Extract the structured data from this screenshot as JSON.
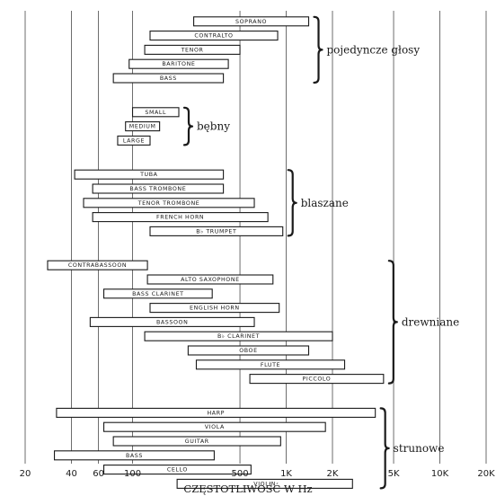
{
  "chart_data": {
    "type": "bar",
    "orientation": "horizontal-range",
    "title": "",
    "xlabel": "CZĘSTOTLIWOŚĆ W Hz",
    "ylabel": "",
    "xscale": "log",
    "xlim": [
      20,
      20000
    ],
    "xticks": [
      {
        "value": 20,
        "label": "20"
      },
      {
        "value": 40,
        "label": "40"
      },
      {
        "value": 60,
        "label": "60"
      },
      {
        "value": 100,
        "label": "100"
      },
      {
        "value": 500,
        "label": "500"
      },
      {
        "value": 1000,
        "label": "1K"
      },
      {
        "value": 2000,
        "label": "2K"
      },
      {
        "value": 5000,
        "label": "5K"
      },
      {
        "value": 10000,
        "label": "10K"
      },
      {
        "value": 20000,
        "label": "20K"
      }
    ],
    "grid": true,
    "groups": [
      {
        "name": "pojedyncze głosy",
        "instruments": [
          {
            "label": "SOPRANO",
            "low": 250,
            "high": 1400
          },
          {
            "label": "CONTRALTO",
            "low": 130,
            "high": 880
          },
          {
            "label": "TENOR",
            "low": 120,
            "high": 500
          },
          {
            "label": "BARITONE",
            "low": 95,
            "high": 420
          },
          {
            "label": "BASS",
            "low": 75,
            "high": 390
          }
        ]
      },
      {
        "name": "bębny",
        "instruments": [
          {
            "label": "SMALL",
            "low": 100,
            "high": 200
          },
          {
            "label": "MEDIUM",
            "low": 90,
            "high": 150
          },
          {
            "label": "LARGE",
            "low": 80,
            "high": 130
          }
        ]
      },
      {
        "name": "blaszane",
        "instruments": [
          {
            "label": "TUBA",
            "low": 42,
            "high": 390
          },
          {
            "label": "BASS TROMBONE",
            "low": 55,
            "high": 390
          },
          {
            "label": "TENOR TROMBONE",
            "low": 48,
            "high": 620
          },
          {
            "label": "FRENCH HORN",
            "low": 55,
            "high": 760
          },
          {
            "label": "B♭ TRUMPET",
            "low": 130,
            "high": 950
          }
        ]
      },
      {
        "name": "drewniane",
        "instruments": [
          {
            "label": "CONTRABASSOON",
            "low": 28,
            "high": 125
          },
          {
            "label": "ALTO SAXOPHONE",
            "low": 125,
            "high": 820
          },
          {
            "label": "BASS CLARINET",
            "low": 65,
            "high": 330
          },
          {
            "label": "ENGLISH HORN",
            "low": 130,
            "high": 900
          },
          {
            "label": "BASSOON",
            "low": 53,
            "high": 620
          },
          {
            "label": "B♭ CLARINET",
            "low": 120,
            "high": 2000
          },
          {
            "label": "OBOE",
            "low": 230,
            "high": 1400
          },
          {
            "label": "FLUTE",
            "low": 260,
            "high": 2400
          },
          {
            "label": "PICCOLO",
            "low": 580,
            "high": 4300
          }
        ]
      },
      {
        "name": "strunowe",
        "instruments": [
          {
            "label": "HARP",
            "low": 32,
            "high": 3800
          },
          {
            "label": "VIOLA",
            "low": 65,
            "high": 1800
          },
          {
            "label": "GUITAR",
            "low": 75,
            "high": 920
          },
          {
            "label": "BASS",
            "low": 31,
            "high": 340
          },
          {
            "label": "CELLO",
            "low": 65,
            "high": 590
          },
          {
            "label": "VIOLIN",
            "low": 195,
            "high": 2700
          }
        ]
      }
    ]
  }
}
